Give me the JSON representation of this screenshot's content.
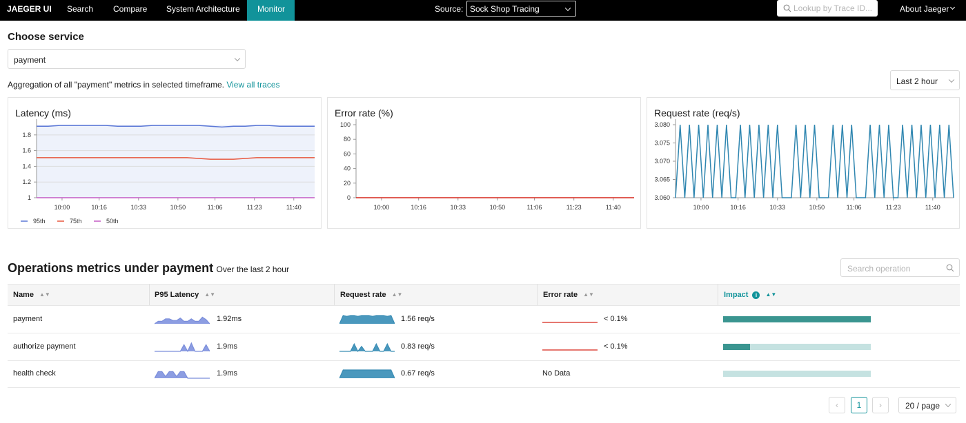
{
  "nav": {
    "brand": "JAEGER UI",
    "items": [
      "Search",
      "Compare",
      "System Architecture",
      "Monitor"
    ],
    "source_label": "Source:",
    "source_value": "Sock Shop Tracing",
    "search_placeholder": "Lookup by Trace ID...",
    "about": "About Jaeger"
  },
  "service": {
    "heading": "Choose service",
    "selected": "payment",
    "aggregation_text": "Aggregation of all \"payment\" metrics in selected timeframe.",
    "link": "View all traces",
    "timeframe": "Last 2 hour"
  },
  "charts": [
    {
      "type": "line",
      "title": "Latency (ms)",
      "grid": true,
      "shaded": true,
      "legend": "bottom-left",
      "x": [
        589,
        594,
        599,
        604,
        609,
        614,
        619,
        624,
        629,
        634,
        639,
        644,
        649,
        654,
        659,
        664,
        669,
        674,
        679,
        684,
        689,
        694,
        699,
        704,
        709
      ],
      "xlim": [
        589,
        709
      ],
      "xticks": [
        {
          "value": 600,
          "label": "10:00"
        },
        {
          "value": 616,
          "label": "10:16"
        },
        {
          "value": 633,
          "label": "10:33"
        },
        {
          "value": 650,
          "label": "10:50"
        },
        {
          "value": 666,
          "label": "11:06"
        },
        {
          "value": 683,
          "label": "11:23"
        },
        {
          "value": 700,
          "label": "11:40"
        }
      ],
      "ylim": [
        1,
        1.93
      ],
      "yticks": [
        1,
        1.2,
        1.4,
        1.6,
        1.8
      ],
      "series": [
        {
          "name": "95th",
          "color": "#5b77d6",
          "values": [
            1.91,
            1.91,
            1.92,
            1.92,
            1.92,
            1.92,
            1.92,
            1.91,
            1.91,
            1.91,
            1.92,
            1.92,
            1.92,
            1.92,
            1.92,
            1.91,
            1.9,
            1.91,
            1.91,
            1.92,
            1.92,
            1.91,
            1.91,
            1.91,
            1.91
          ]
        },
        {
          "name": "75th",
          "color": "#e8573e",
          "values": [
            1.51,
            1.51,
            1.51,
            1.51,
            1.51,
            1.51,
            1.51,
            1.51,
            1.51,
            1.51,
            1.51,
            1.51,
            1.51,
            1.51,
            1.5,
            1.49,
            1.49,
            1.49,
            1.5,
            1.51,
            1.51,
            1.51,
            1.51,
            1.51,
            1.51
          ]
        },
        {
          "name": "50th",
          "color": "#c45ac4",
          "values": [
            1,
            1,
            1,
            1,
            1,
            1,
            1,
            1,
            1,
            1,
            1,
            1,
            1,
            1,
            1,
            1,
            1,
            1,
            1,
            1,
            1,
            1,
            1,
            1,
            1
          ]
        }
      ]
    },
    {
      "type": "line",
      "title": "Error rate (%)",
      "grid": false,
      "x": [
        589,
        594,
        599,
        604,
        609,
        614,
        619,
        624,
        629,
        634,
        639,
        644,
        649,
        654,
        659,
        664,
        669,
        674,
        679,
        684,
        689,
        694,
        699,
        704,
        709
      ],
      "xlim": [
        589,
        709
      ],
      "xticks": [
        {
          "value": 600,
          "label": "10:00"
        },
        {
          "value": 616,
          "label": "10:16"
        },
        {
          "value": 633,
          "label": "10:33"
        },
        {
          "value": 650,
          "label": "10:50"
        },
        {
          "value": 666,
          "label": "11:06"
        },
        {
          "value": 683,
          "label": "11:23"
        },
        {
          "value": 700,
          "label": "11:40"
        }
      ],
      "ylim": [
        0,
        100
      ],
      "yticks": [
        0,
        20,
        40,
        60,
        80,
        100
      ],
      "series": [
        {
          "color": "#d6261b",
          "values": [
            0,
            0,
            0,
            0,
            0,
            0,
            0,
            0,
            0,
            0,
            0,
            0,
            0,
            0,
            0,
            0,
            0,
            0,
            0,
            0,
            0,
            0,
            0,
            0,
            0
          ]
        }
      ]
    },
    {
      "type": "line",
      "title": "Request rate (req/s)",
      "grid": false,
      "x": [
        589,
        591,
        593,
        595,
        597,
        599,
        601,
        603,
        605,
        607,
        609,
        611,
        613,
        615,
        617,
        619,
        621,
        623,
        625,
        627,
        629,
        631,
        633,
        635,
        637,
        639,
        641,
        643,
        645,
        647,
        649,
        651,
        653,
        655,
        657,
        659,
        661,
        663,
        665,
        667,
        669,
        671,
        673,
        675,
        677,
        679,
        681,
        683,
        685,
        687,
        689,
        691,
        693,
        695,
        697,
        699,
        701,
        703,
        705,
        707,
        709
      ],
      "xlim": [
        589,
        709
      ],
      "xticks": [
        {
          "value": 600,
          "label": "10:00"
        },
        {
          "value": 616,
          "label": "10:16"
        },
        {
          "value": 633,
          "label": "10:33"
        },
        {
          "value": 650,
          "label": "10:50"
        },
        {
          "value": 666,
          "label": "11:06"
        },
        {
          "value": 683,
          "label": "11:23"
        },
        {
          "value": 700,
          "label": "11:40"
        }
      ],
      "ylim": [
        3.06,
        3.08
      ],
      "yticks": [
        {
          "value": 3.06,
          "label": "3.060"
        },
        3.065,
        {
          "value": 3.07,
          "label": "3.070"
        },
        3.075,
        {
          "value": 3.08,
          "label": "3.080"
        }
      ],
      "series": [
        {
          "color": "#2f86b0",
          "values": [
            3.06,
            3.08,
            3.06,
            3.08,
            3.06,
            3.08,
            3.06,
            3.08,
            3.06,
            3.08,
            3.06,
            3.08,
            3.06,
            3.06,
            3.08,
            3.06,
            3.08,
            3.06,
            3.08,
            3.06,
            3.08,
            3.06,
            3.08,
            3.06,
            3.06,
            3.06,
            3.08,
            3.06,
            3.08,
            3.06,
            3.08,
            3.06,
            3.06,
            3.06,
            3.08,
            3.06,
            3.08,
            3.06,
            3.08,
            3.06,
            3.06,
            3.06,
            3.08,
            3.06,
            3.08,
            3.06,
            3.08,
            3.06,
            3.06,
            3.08,
            3.06,
            3.08,
            3.06,
            3.08,
            3.06,
            3.08,
            3.06,
            3.08,
            3.06,
            3.08,
            3.06
          ]
        }
      ]
    }
  ],
  "operations": {
    "heading": "Operations metrics under payment",
    "subheading": "Over the last 2 hour",
    "search_placeholder": "Search operation",
    "columns": [
      "Name",
      "P95 Latency",
      "Request rate",
      "Error rate",
      "Impact"
    ],
    "rows": [
      {
        "name": "payment",
        "latency": "1.92ms",
        "latency_trend": [
          0,
          0.3,
          0.3,
          0.6,
          0.6,
          0.4,
          0.4,
          0.7,
          0.3,
          0.3,
          0.6,
          0.3,
          0.3,
          0.8,
          0.5,
          0
        ],
        "request_rate": "1.56 req/s",
        "request_trend": [
          0,
          1,
          0.9,
          1,
          1,
          0.9,
          1,
          1,
          1,
          0.9,
          1,
          1,
          1,
          0.9,
          1,
          0
        ],
        "error_rate": "< 0.1%",
        "error_trend": [
          0,
          0,
          0,
          0,
          0,
          0,
          0,
          0,
          0,
          0,
          0,
          0,
          0,
          0,
          0,
          0
        ],
        "impact": 1
      },
      {
        "name": "authorize payment",
        "latency": "1.9ms",
        "latency_trend": [
          0,
          0,
          0,
          0,
          0,
          0,
          0,
          0,
          0.8,
          0,
          1,
          0,
          0,
          0,
          0.8,
          0
        ],
        "request_rate": "0.83 req/s",
        "request_trend": [
          0,
          0,
          0,
          0,
          0.9,
          0,
          0.6,
          0,
          0,
          0,
          0.9,
          0,
          0,
          0.9,
          0,
          0
        ],
        "error_rate": "< 0.1%",
        "error_trend": [
          0,
          0,
          0,
          0,
          0,
          0,
          0,
          0,
          0,
          0,
          0,
          0,
          0,
          0,
          0,
          0
        ],
        "impact": 0.18
      },
      {
        "name": "health check",
        "latency": "1.9ms",
        "latency_trend": [
          0,
          0.8,
          0.8,
          0.2,
          0.8,
          0.8,
          0.2,
          0.8,
          0.8,
          0,
          0,
          0,
          0,
          0,
          0,
          0
        ],
        "request_rate": "0.67 req/s",
        "request_trend": [
          0,
          1,
          1,
          1,
          1,
          1,
          1,
          1,
          1,
          1,
          1,
          1,
          1,
          1,
          1,
          0
        ],
        "error_rate": "No Data",
        "impact": 0
      }
    ],
    "pagination": {
      "page": "1",
      "page_size": "20 / page"
    }
  }
}
